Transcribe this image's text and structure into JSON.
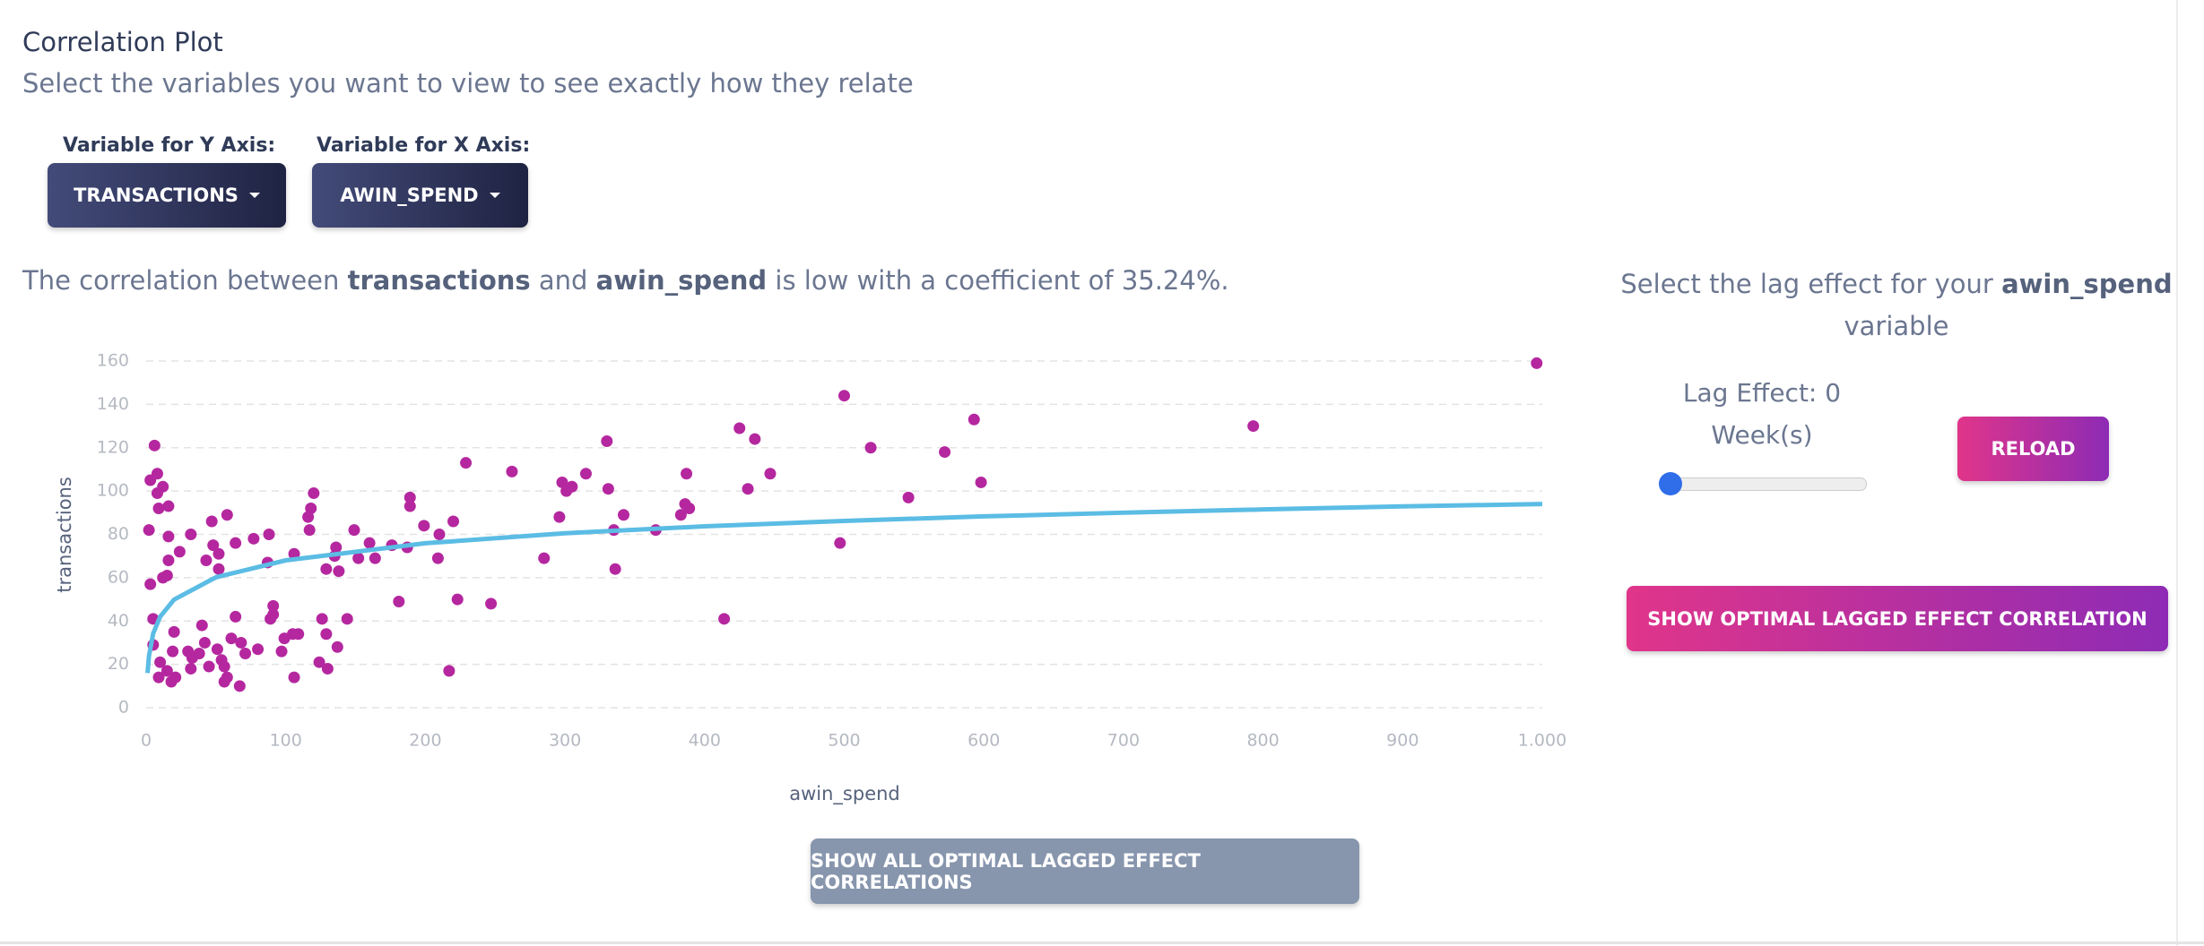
{
  "header": {
    "title": "Correlation Plot",
    "subtitle": "Select the variables you want to view to see exactly how they relate"
  },
  "selectors": [
    {
      "label": "Variable for Y Axis:",
      "value": "TRANSACTIONS"
    },
    {
      "label": "Variable for X Axis:",
      "value": "AWIN_SPEND"
    }
  ],
  "summary": {
    "parts": [
      "The correlation between ",
      "transactions",
      " and ",
      "awin_spend",
      " is low with a coefficient of 35.24%."
    ]
  },
  "lag_panel": {
    "prompt": [
      "Select the lag effect for your ",
      "awin_spend",
      "variable"
    ],
    "lag_label": "Lag Effect: 0 Week(s)",
    "reload": "RELOAD",
    "optimal_button": "SHOW OPTIMAL LAGGED EFFECT CORRELATION"
  },
  "footer_button": "SHOW ALL OPTIMAL LAGGED EFFECT CORRELATIONS",
  "chart_data": {
    "type": "scatter",
    "x_label": "awin_spend",
    "y_label": "transactions",
    "xlim": [
      0,
      1000
    ],
    "ylim": [
      0,
      160
    ],
    "xticks": [
      0,
      100,
      200,
      300,
      400,
      500,
      600,
      700,
      800,
      900,
      {
        "value": 1000,
        "label": "1.000"
      }
    ],
    "yticks": [
      0,
      20,
      40,
      60,
      80,
      100,
      120,
      140,
      160
    ],
    "grid": true,
    "series": [
      {
        "type": "scatter",
        "color": "#b5279f",
        "x": [
          996,
          500,
          593,
          793,
          425,
          436,
          330,
          519,
          572,
          6,
          229,
          315,
          387,
          447,
          262,
          8,
          3,
          298,
          598,
          12,
          305,
          301,
          331,
          431,
          120,
          8,
          189,
          546,
          386,
          189,
          16,
          9,
          389,
          118,
          58,
          342,
          296,
          116,
          383,
          220,
          47,
          199,
          149,
          365,
          335,
          2,
          117,
          210,
          88,
          32,
          16,
          77,
          160,
          64,
          48,
          497,
          136,
          176,
          187,
          24,
          52,
          106,
          135,
          152,
          164,
          209,
          285,
          16,
          43,
          87,
          129,
          138,
          336,
          52,
          15,
          12,
          3,
          181,
          223,
          247,
          91,
          91,
          64,
          89,
          5,
          126,
          144,
          414,
          40,
          20,
          129,
          105,
          109,
          99,
          61,
          68,
          42,
          5,
          137,
          30,
          19,
          51,
          80,
          97,
          38,
          71,
          33,
          54,
          124,
          10,
          56,
          32,
          130,
          217,
          15,
          45,
          21,
          9,
          58,
          106,
          18,
          67,
          56
        ],
        "values": [
          159,
          144,
          133,
          130,
          129,
          124,
          123,
          120,
          118,
          121,
          113,
          108,
          108,
          108,
          109,
          108,
          105,
          104,
          104,
          102,
          102,
          100,
          101,
          101,
          99,
          99,
          97,
          97,
          94,
          93,
          93,
          92,
          92,
          92,
          89,
          89,
          88,
          88,
          89,
          86,
          86,
          84,
          82,
          82,
          82,
          82,
          82,
          80,
          80,
          80,
          79,
          78,
          76,
          76,
          75,
          76,
          74,
          75,
          74,
          72,
          71,
          71,
          70,
          69,
          69,
          69,
          69,
          68,
          68,
          67,
          64,
          63,
          64,
          64,
          61,
          60,
          57,
          49,
          50,
          48,
          47,
          43,
          42,
          41,
          41,
          41,
          41,
          41,
          38,
          35,
          34,
          34,
          34,
          32,
          32,
          30,
          30,
          29,
          28,
          26,
          26,
          27,
          27,
          26,
          25,
          25,
          23,
          22,
          21,
          21,
          19,
          18,
          18,
          17,
          17,
          19,
          14,
          14,
          14,
          14,
          12,
          10,
          12
        ]
      },
      {
        "type": "line",
        "color": "#5bbce4",
        "x": [
          1,
          2,
          5,
          10,
          20,
          50,
          100,
          200,
          300,
          400,
          500,
          600,
          700,
          800,
          900,
          1000
        ],
        "values": [
          16,
          23.8,
          34.2,
          42,
          49.9,
          60.2,
          68,
          75.9,
          80.5,
          83.7,
          86.2,
          88.3,
          90,
          91.5,
          92.9,
          94
        ]
      }
    ]
  }
}
